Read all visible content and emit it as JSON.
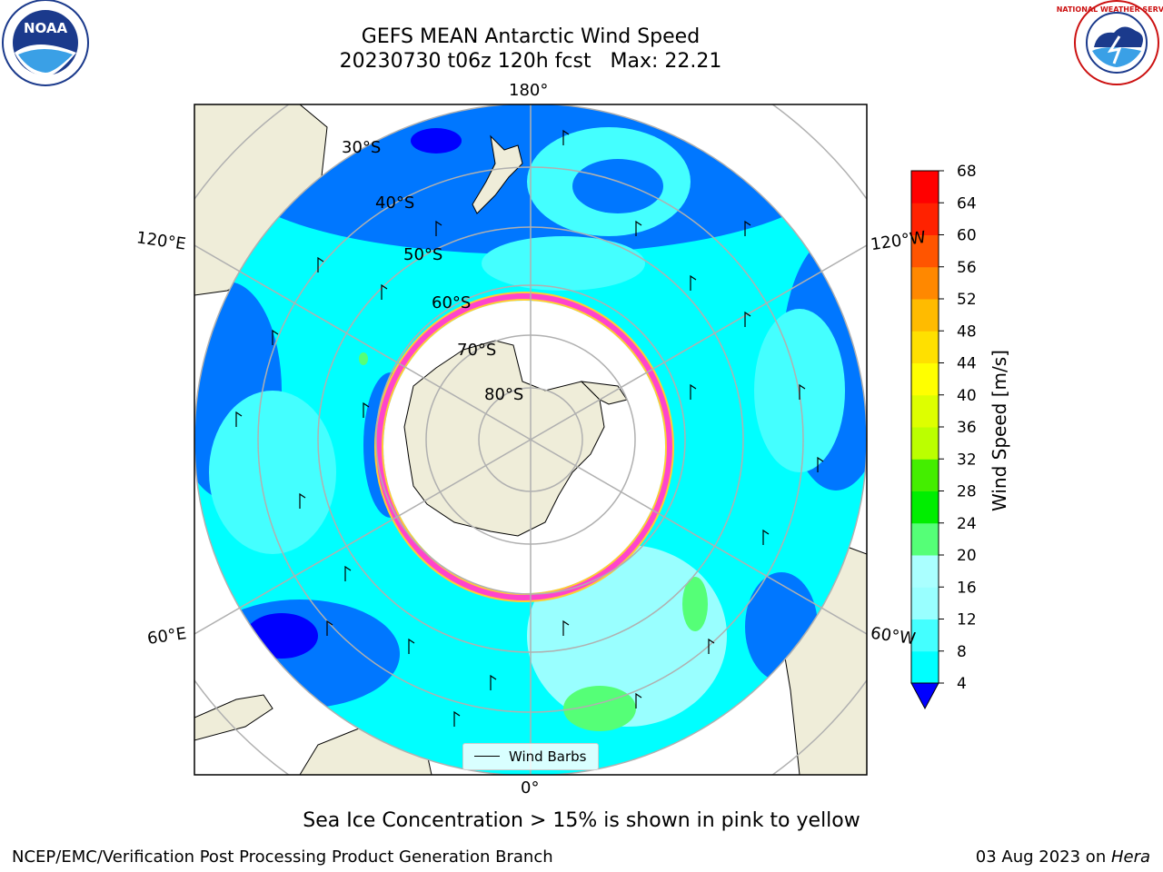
{
  "header": {
    "title_line1": "GEFS MEAN Antarctic Wind Speed",
    "title_line2": "20230730 t06z 120h fcst   Max: 22.21",
    "noaa_logo_text": "NOAA",
    "noaa_logo_ring": "NATIONAL OCEANIC AND ATMOSPHERIC ADMINISTRATION · U.S. DEPARTMENT OF COMMERCE",
    "nws_logo_ring": "NATIONAL WEATHER SERVICE"
  },
  "map": {
    "projection": "south-polar-stereographic",
    "longitude_labels": {
      "top": "180°",
      "bottom": "0°",
      "left_upper": "120°E",
      "left_lower": "60°E",
      "right_upper": "120°W",
      "right_lower": "60°W"
    },
    "latitude_labels": [
      "30°S",
      "40°S",
      "50°S",
      "60°S",
      "70°S",
      "80°S"
    ],
    "legend_label": "Wind Barbs",
    "colors": {
      "land": "#efedd9",
      "grid": "#b0b0b0",
      "sea_ice": "#ff44cc",
      "sea_ice_edge": "#ffcc33"
    }
  },
  "colorbar": {
    "label": "Wind Speed [m/s]",
    "ticks": [
      "4",
      "8",
      "12",
      "16",
      "20",
      "24",
      "28",
      "32",
      "36",
      "40",
      "44",
      "48",
      "52",
      "56",
      "60",
      "64",
      "68"
    ],
    "under_color": "#0000ff",
    "colors": [
      "#0077ff",
      "#00ffff",
      "#44ffff",
      "#99ffff",
      "#aaffff",
      "#55ff77",
      "#00ee00",
      "#44ee00",
      "#bbff00",
      "#ddff00",
      "#ffff00",
      "#ffe000",
      "#ffbb00",
      "#ff8800",
      "#ff5500",
      "#ff2200",
      "#ff0000"
    ]
  },
  "footer": {
    "note": "Sea Ice Concentration > 15% is shown in pink to yellow",
    "left": "NCEP/EMC/Verification Post Processing Product Generation Branch",
    "right_date": "03 Aug 2023 on ",
    "right_host": "Hera"
  }
}
